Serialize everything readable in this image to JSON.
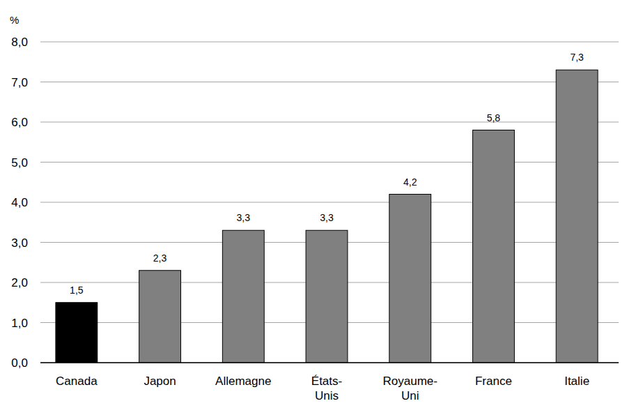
{
  "chart_data": {
    "type": "bar",
    "y_label": "%",
    "categories": [
      "Canada",
      "Japon",
      "Allemagne",
      "États-Unis",
      "Royaume-Uni",
      "France",
      "Italie"
    ],
    "values": [
      1.5,
      2.3,
      3.3,
      3.3,
      4.2,
      5.8,
      7.3
    ],
    "value_labels": [
      "1,5",
      "2,3",
      "3,3",
      "3,3",
      "4,2",
      "5,8",
      "7,3"
    ],
    "colors": [
      "#000000",
      "#808080",
      "#808080",
      "#808080",
      "#808080",
      "#808080",
      "#808080"
    ],
    "ylim": [
      0,
      8
    ],
    "yticks": [
      {
        "value": 0,
        "label": "0,0"
      },
      {
        "value": 1,
        "label": "1,0"
      },
      {
        "value": 2,
        "label": "2,0"
      },
      {
        "value": 3,
        "label": "3,0"
      },
      {
        "value": 4,
        "label": "4,0"
      },
      {
        "value": 5,
        "label": "5,0"
      },
      {
        "value": 6,
        "label": "6,0"
      },
      {
        "value": 7,
        "label": "7,0"
      },
      {
        "value": 8,
        "label": "8,0"
      }
    ],
    "grid": true,
    "data_labels": true
  }
}
